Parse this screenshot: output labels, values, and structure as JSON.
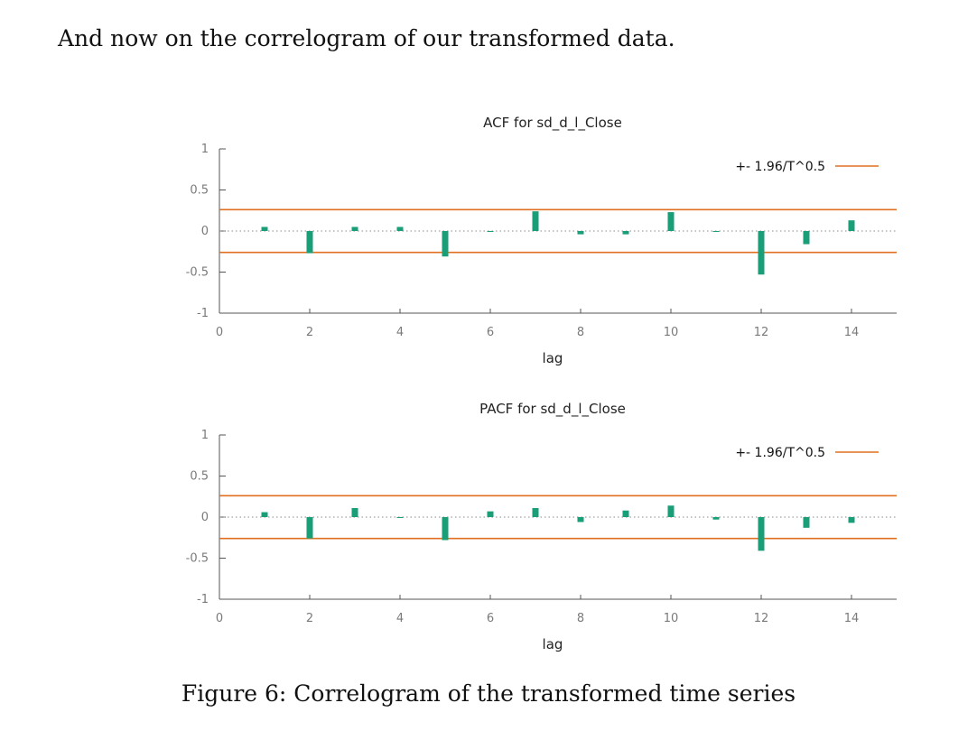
{
  "document": {
    "intro_text": "And now on the correlogram of our transformed data.",
    "caption": "Figure 6: Correlogram of the transformed time series"
  },
  "colors": {
    "bar": "#1a9e77",
    "confidence_band": "#e07020",
    "axis": "#555555",
    "zero_line": "#888888"
  },
  "chart_data": [
    {
      "type": "bar",
      "title": "ACF for sd_d_l_Close",
      "xlabel": "lag",
      "ylabel": "",
      "xlim": [
        0,
        15
      ],
      "ylim": [
        -1,
        1
      ],
      "xticks": [
        "0",
        "2",
        "4",
        "6",
        "8",
        "10",
        "12",
        "14"
      ],
      "yticks": [
        "1",
        "0.5",
        "0",
        "-0.5",
        "-1"
      ],
      "legend": "+- 1.96/T^0.5",
      "legend_position": "top-right",
      "confidence_bound": 0.26,
      "x": [
        1,
        2,
        3,
        4,
        5,
        6,
        7,
        8,
        9,
        10,
        11,
        12,
        13,
        14
      ],
      "values": [
        0.05,
        -0.27,
        0.05,
        0.05,
        -0.31,
        -0.01,
        0.24,
        -0.04,
        -0.04,
        0.23,
        -0.01,
        -0.53,
        -0.16,
        0.13
      ]
    },
    {
      "type": "bar",
      "title": "PACF for sd_d_l_Close",
      "xlabel": "lag",
      "ylabel": "",
      "xlim": [
        0,
        15
      ],
      "ylim": [
        -1,
        1
      ],
      "xticks": [
        "0",
        "2",
        "4",
        "6",
        "8",
        "10",
        "12",
        "14"
      ],
      "yticks": [
        "1",
        "0.5",
        "0",
        "-0.5",
        "-1"
      ],
      "legend": "+- 1.96/T^0.5",
      "legend_position": "top-right",
      "confidence_bound": 0.26,
      "x": [
        1,
        2,
        3,
        4,
        5,
        6,
        7,
        8,
        9,
        10,
        11,
        12,
        13,
        14
      ],
      "values": [
        0.06,
        -0.26,
        0.11,
        -0.01,
        -0.28,
        0.07,
        0.11,
        -0.06,
        0.08,
        0.14,
        -0.03,
        -0.41,
        -0.13,
        -0.07
      ]
    }
  ]
}
